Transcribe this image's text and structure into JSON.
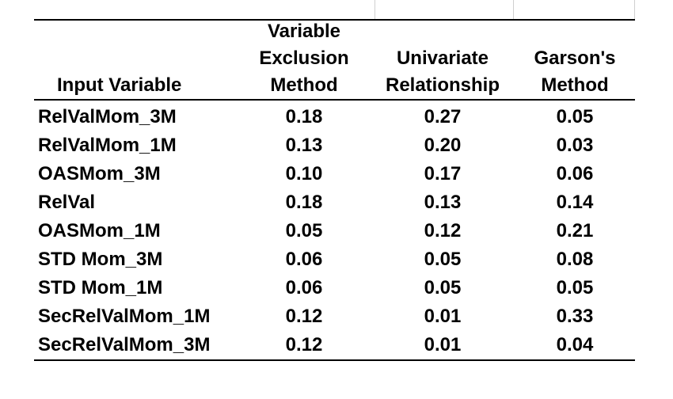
{
  "table": {
    "headers": [
      {
        "lines": [
          "Input Variable"
        ]
      },
      {
        "lines": [
          "Variable",
          "Exclusion",
          "Method"
        ]
      },
      {
        "lines": [
          "Univariate",
          "Relationship"
        ]
      },
      {
        "lines": [
          "Garson's",
          "Method"
        ]
      }
    ],
    "rows": [
      [
        "RelValMom_3M",
        "0.18",
        "0.27",
        "0.05"
      ],
      [
        "RelValMom_1M",
        "0.13",
        "0.20",
        "0.03"
      ],
      [
        "OASMom_3M",
        "0.10",
        "0.17",
        "0.06"
      ],
      [
        "RelVal",
        "0.18",
        "0.13",
        "0.14"
      ],
      [
        "OASMom_1M",
        "0.05",
        "0.12",
        "0.21"
      ],
      [
        "STD Mom_3M",
        "0.06",
        "0.05",
        "0.08"
      ],
      [
        "STD Mom_1M",
        "0.06",
        "0.05",
        "0.05"
      ],
      [
        "SecRelValMom_1M",
        "0.12",
        "0.01",
        "0.33"
      ],
      [
        "SecRelValMom_3M",
        "0.12",
        "0.01",
        "0.04"
      ]
    ]
  }
}
